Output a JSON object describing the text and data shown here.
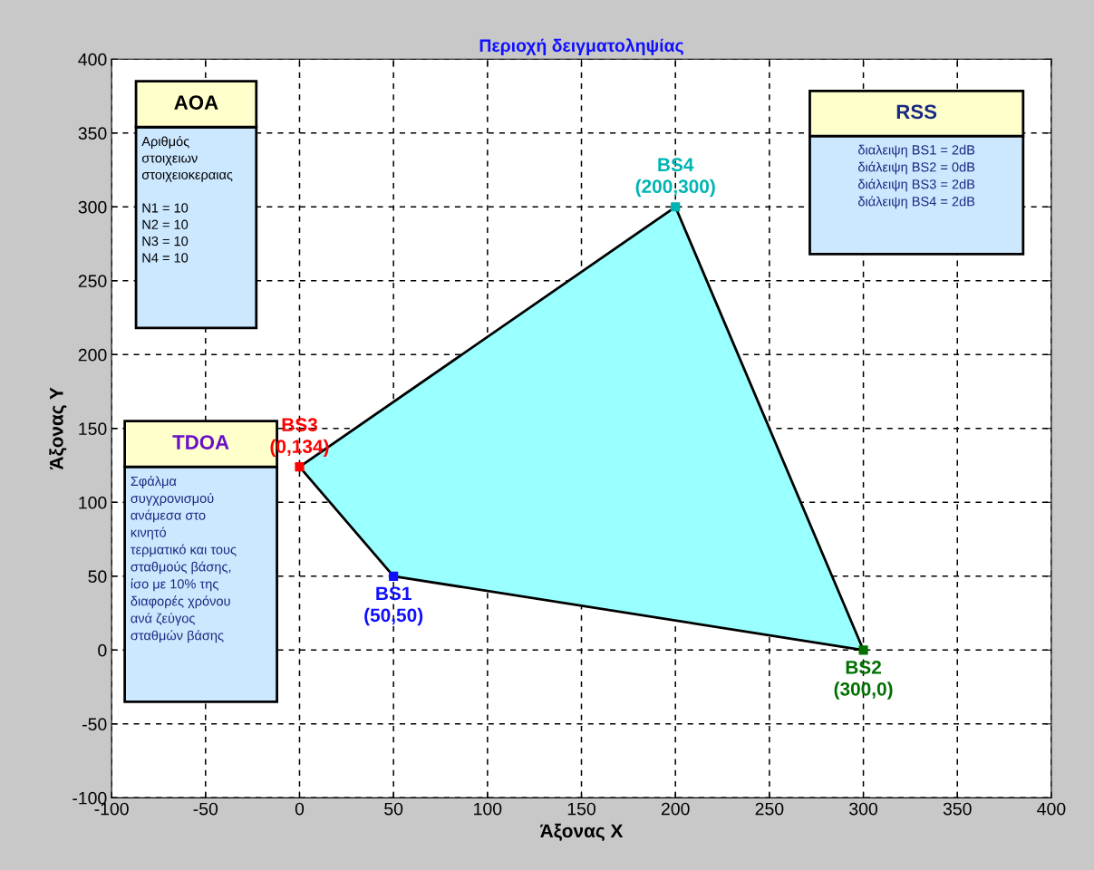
{
  "chart_data": {
    "type": "scatter",
    "title": "Περιοχή δειγματοληψίας",
    "xlabel": "Άξονας X",
    "ylabel": "Άξονας Y",
    "xlim": [
      -100,
      400
    ],
    "ylim": [
      -100,
      400
    ],
    "xticks": [
      -100,
      -50,
      0,
      50,
      100,
      150,
      200,
      250,
      300,
      350,
      400
    ],
    "yticks": [
      -100,
      -50,
      0,
      50,
      100,
      150,
      200,
      250,
      300,
      350,
      400
    ],
    "grid": true,
    "series": [
      {
        "type": "area",
        "color": "#99ffff",
        "x": [
          50,
          300,
          200,
          0
        ],
        "values": [
          50,
          0,
          300,
          124
        ]
      },
      {
        "marker": "square",
        "x": [
          50,
          300,
          0,
          200
        ],
        "values": [
          50,
          0,
          124,
          300
        ],
        "colors": [
          "#1010ff",
          "#007000",
          "#ff0000",
          "#00b4b4"
        ],
        "value_labels": [
          "BS1\n(50,50)",
          "BS2\n(300,0)",
          "BS3\n(0,134)",
          "BS4\n(200,300)"
        ]
      }
    ],
    "annotations": [
      "AOA",
      "Αριθμός\nστοιχειων\nστοιχειοκεραιας\n\nN1 = 10\nN2 = 10\nN3 = 10\nN4 = 10",
      "TDOA",
      "Σφάλμα\nσυγχρονισμού\nανάμεσα στο\nκινητό\nτερματικό και τους\nσταθμούς βάσης,\nίσο με 10% της\nδιαφορές χρόνου\nανά ζεύγος\nσταθμών βάσης",
      "RSS",
      "διαλειψη BS1 = 2dB\nδιάλειψη BS2 = 0dB\nδιάλειψη BS3 = 2dB\nδιάλειψη BS4 = 2dB"
    ]
  }
}
